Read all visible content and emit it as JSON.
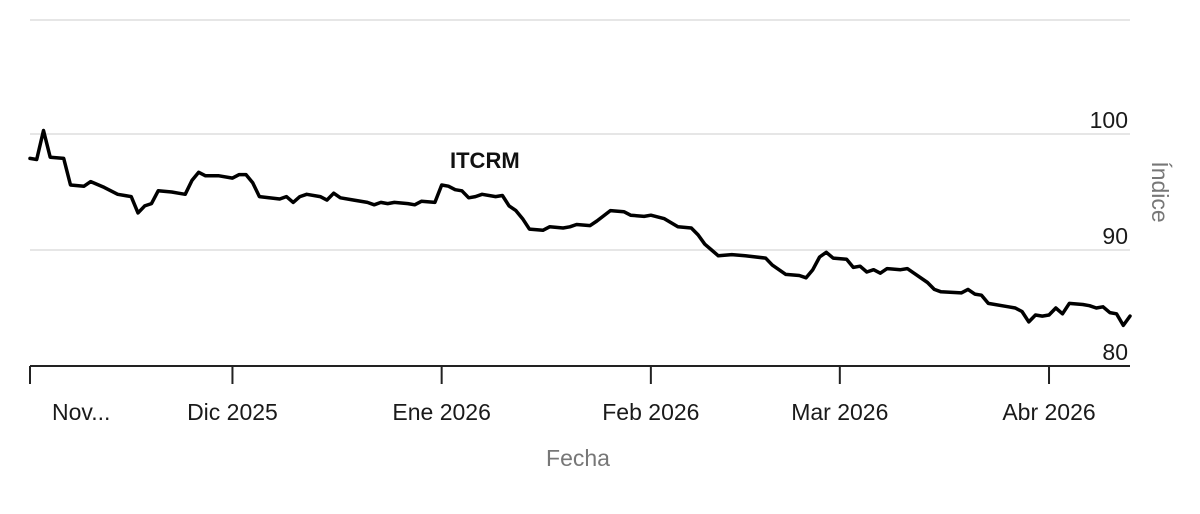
{
  "chart_data": {
    "type": "line",
    "title": "",
    "xlabel": "Fecha",
    "ylabel": "Índice",
    "x_ticks": [
      {
        "date": "2025-11-01",
        "label": "Nov..."
      },
      {
        "date": "2025-12-01",
        "label": "Dic 2025"
      },
      {
        "date": "2026-01-01",
        "label": "Ene 2026"
      },
      {
        "date": "2026-02-01",
        "label": "Feb 2026"
      },
      {
        "date": "2026-03-01",
        "label": "Mar 2026"
      },
      {
        "date": "2026-04-01",
        "label": "Abr 2026"
      }
    ],
    "y_ticks": [
      80,
      90,
      100
    ],
    "ylim": [
      80,
      100
    ],
    "xlim": [
      "2025-11-01",
      "2026-04-13"
    ],
    "grid": true,
    "y_axis_side": "right",
    "series": [
      {
        "name": "ITCRM",
        "color": "#000000",
        "points": [
          [
            "2025-11-01",
            97.9
          ],
          [
            "2025-11-02",
            97.8
          ],
          [
            "2025-11-03",
            100.3
          ],
          [
            "2025-11-04",
            98.0
          ],
          [
            "2025-11-06",
            97.9
          ],
          [
            "2025-11-07",
            95.6
          ],
          [
            "2025-11-09",
            95.5
          ],
          [
            "2025-11-10",
            95.9
          ],
          [
            "2025-11-12",
            95.4
          ],
          [
            "2025-11-14",
            94.8
          ],
          [
            "2025-11-16",
            94.6
          ],
          [
            "2025-11-17",
            93.2
          ],
          [
            "2025-11-18",
            93.8
          ],
          [
            "2025-11-19",
            94.0
          ],
          [
            "2025-11-20",
            95.1
          ],
          [
            "2025-11-22",
            95.0
          ],
          [
            "2025-11-23",
            94.9
          ],
          [
            "2025-11-24",
            94.8
          ],
          [
            "2025-11-25",
            96.0
          ],
          [
            "2025-11-26",
            96.7
          ],
          [
            "2025-11-27",
            96.4
          ],
          [
            "2025-11-29",
            96.4
          ],
          [
            "2025-12-01",
            96.2
          ],
          [
            "2025-12-02",
            96.5
          ],
          [
            "2025-12-03",
            96.5
          ],
          [
            "2025-12-04",
            95.8
          ],
          [
            "2025-12-05",
            94.6
          ],
          [
            "2025-12-08",
            94.4
          ],
          [
            "2025-12-09",
            94.6
          ],
          [
            "2025-12-10",
            94.1
          ],
          [
            "2025-12-11",
            94.6
          ],
          [
            "2025-12-12",
            94.8
          ],
          [
            "2025-12-14",
            94.6
          ],
          [
            "2025-12-15",
            94.3
          ],
          [
            "2025-12-16",
            94.9
          ],
          [
            "2025-12-17",
            94.5
          ],
          [
            "2025-12-19",
            94.3
          ],
          [
            "2025-12-21",
            94.1
          ],
          [
            "2025-12-22",
            93.9
          ],
          [
            "2025-12-23",
            94.1
          ],
          [
            "2025-12-24",
            94.0
          ],
          [
            "2025-12-25",
            94.1
          ],
          [
            "2025-12-27",
            94.0
          ],
          [
            "2025-12-28",
            93.9
          ],
          [
            "2025-12-29",
            94.2
          ],
          [
            "2025-12-31",
            94.1
          ],
          [
            "2026-01-01",
            95.6
          ],
          [
            "2026-01-02",
            95.5
          ],
          [
            "2026-01-03",
            95.2
          ],
          [
            "2026-01-04",
            95.1
          ],
          [
            "2026-01-05",
            94.5
          ],
          [
            "2026-01-06",
            94.6
          ],
          [
            "2026-01-07",
            94.8
          ],
          [
            "2026-01-09",
            94.6
          ],
          [
            "2026-01-10",
            94.7
          ],
          [
            "2026-01-11",
            93.8
          ],
          [
            "2026-01-12",
            93.4
          ],
          [
            "2026-01-13",
            92.7
          ],
          [
            "2026-01-14",
            91.8
          ],
          [
            "2026-01-16",
            91.7
          ],
          [
            "2026-01-17",
            92.0
          ],
          [
            "2026-01-19",
            91.9
          ],
          [
            "2026-01-20",
            92.0
          ],
          [
            "2026-01-21",
            92.2
          ],
          [
            "2026-01-23",
            92.1
          ],
          [
            "2026-01-24",
            92.5
          ],
          [
            "2026-01-26",
            93.4
          ],
          [
            "2026-01-28",
            93.3
          ],
          [
            "2026-01-29",
            93.0
          ],
          [
            "2026-01-31",
            92.9
          ],
          [
            "2026-02-01",
            93.0
          ],
          [
            "2026-02-03",
            92.7
          ],
          [
            "2026-02-05",
            92.0
          ],
          [
            "2026-02-07",
            91.9
          ],
          [
            "2026-02-08",
            91.3
          ],
          [
            "2026-02-09",
            90.5
          ],
          [
            "2026-02-10",
            90.0
          ],
          [
            "2026-02-11",
            89.5
          ],
          [
            "2026-02-13",
            89.6
          ],
          [
            "2026-02-15",
            89.5
          ],
          [
            "2026-02-18",
            89.3
          ],
          [
            "2026-02-19",
            88.7
          ],
          [
            "2026-02-21",
            87.9
          ],
          [
            "2026-02-23",
            87.8
          ],
          [
            "2026-02-24",
            87.6
          ],
          [
            "2026-02-25",
            88.3
          ],
          [
            "2026-02-26",
            89.4
          ],
          [
            "2026-02-27",
            89.8
          ],
          [
            "2026-02-28",
            89.3
          ],
          [
            "2026-03-02",
            89.2
          ],
          [
            "2026-03-03",
            88.5
          ],
          [
            "2026-03-04",
            88.6
          ],
          [
            "2026-03-05",
            88.1
          ],
          [
            "2026-03-06",
            88.3
          ],
          [
            "2026-03-07",
            88.0
          ],
          [
            "2026-03-08",
            88.4
          ],
          [
            "2026-03-10",
            88.3
          ],
          [
            "2026-03-11",
            88.4
          ],
          [
            "2026-03-12",
            88.0
          ],
          [
            "2026-03-14",
            87.2
          ],
          [
            "2026-03-15",
            86.6
          ],
          [
            "2026-03-16",
            86.4
          ],
          [
            "2026-03-19",
            86.3
          ],
          [
            "2026-03-20",
            86.6
          ],
          [
            "2026-03-21",
            86.2
          ],
          [
            "2026-03-22",
            86.1
          ],
          [
            "2026-03-23",
            85.4
          ],
          [
            "2026-03-26",
            85.1
          ],
          [
            "2026-03-27",
            85.0
          ],
          [
            "2026-03-28",
            84.7
          ],
          [
            "2026-03-29",
            83.8
          ],
          [
            "2026-03-30",
            84.4
          ],
          [
            "2026-03-31",
            84.3
          ],
          [
            "2026-04-01",
            84.4
          ],
          [
            "2026-04-02",
            85.0
          ],
          [
            "2026-04-03",
            84.5
          ],
          [
            "2026-04-04",
            85.4
          ],
          [
            "2026-04-06",
            85.3
          ],
          [
            "2026-04-07",
            85.2
          ],
          [
            "2026-04-08",
            85.0
          ],
          [
            "2026-04-09",
            85.1
          ],
          [
            "2026-04-10",
            84.6
          ],
          [
            "2026-04-11",
            84.5
          ],
          [
            "2026-04-12",
            83.5
          ],
          [
            "2026-04-13",
            84.3
          ]
        ]
      }
    ]
  }
}
